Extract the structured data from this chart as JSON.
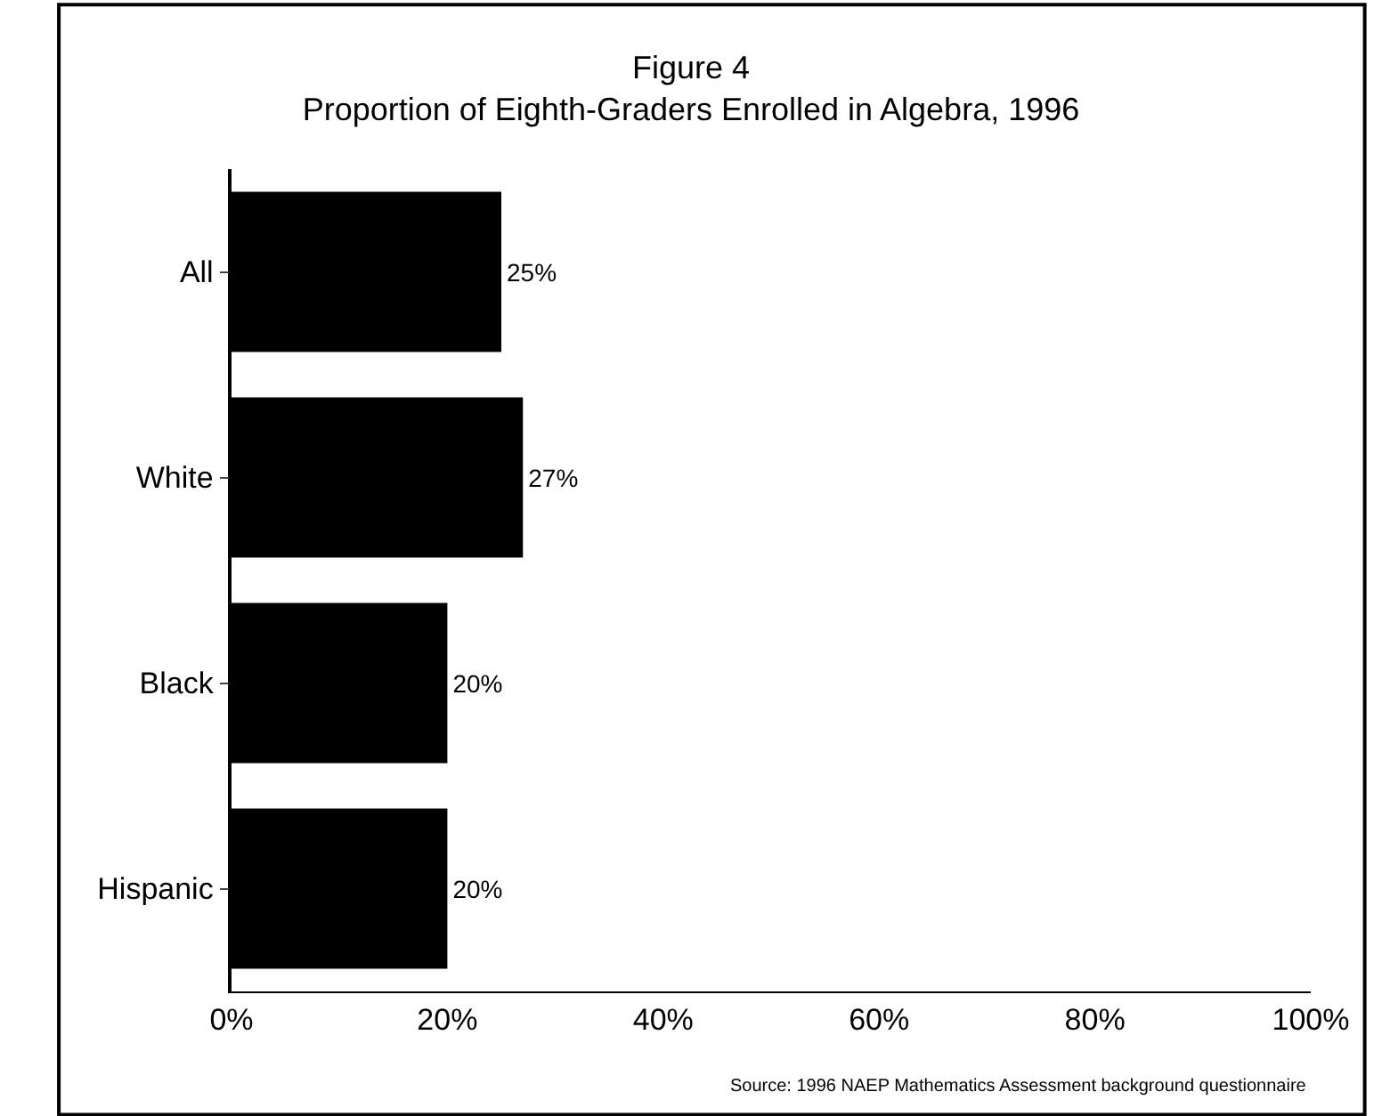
{
  "chart_data": {
    "type": "bar",
    "orientation": "horizontal",
    "title": "Figure 4",
    "subtitle": "Proportion of Eighth-Graders Enrolled in Algebra, 1996",
    "categories": [
      "All",
      "White",
      "Black",
      "Hispanic"
    ],
    "values": [
      25,
      27,
      20,
      20
    ],
    "color": "#000000",
    "value_labels": [
      "25%",
      "27%",
      "20%",
      "20%"
    ],
    "xlim": [
      0,
      100
    ],
    "xticks": [
      {
        "value": 0,
        "label": "0%"
      },
      {
        "value": 20,
        "label": "20%"
      },
      {
        "value": 40,
        "label": "40%"
      },
      {
        "value": 60,
        "label": "60%"
      },
      {
        "value": 80,
        "label": "80%"
      },
      {
        "value": 100,
        "label": "100%"
      }
    ],
    "annotations": [
      "Source: 1996 NAEP Mathematics Assessment background questionnaire"
    ]
  }
}
